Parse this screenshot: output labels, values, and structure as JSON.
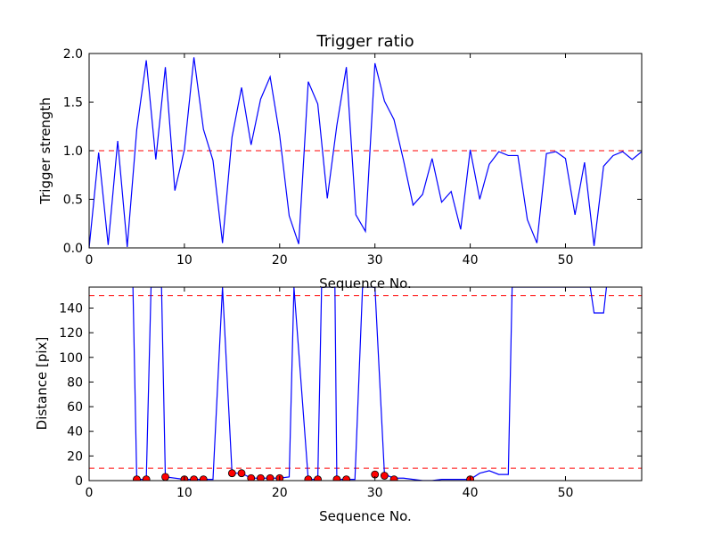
{
  "chart_data": [
    {
      "type": "line",
      "title": "Trigger ratio",
      "xlabel": "Sequence No.",
      "ylabel": "Trigger strength",
      "xlim": [
        0,
        58
      ],
      "ylim": [
        0,
        2.0
      ],
      "x_ticks": [
        "0",
        "10",
        "20",
        "30",
        "40",
        "50"
      ],
      "x_tick_values": [
        0,
        10,
        20,
        30,
        40,
        50
      ],
      "y_ticks": [
        "0.0",
        "0.5",
        "1.0",
        "1.5",
        "2.0"
      ],
      "y_tick_values": [
        0,
        0.5,
        1.0,
        1.5,
        2.0
      ],
      "grid": false,
      "series": [
        {
          "color": "#0000ff",
          "x": [
            0,
            1,
            2,
            3,
            4,
            5,
            6,
            7,
            8,
            9,
            10,
            11,
            12,
            13,
            14,
            15,
            16,
            17,
            18,
            19,
            20,
            21,
            22,
            23,
            24,
            25,
            26,
            27,
            28,
            29,
            30,
            31,
            32,
            33,
            34,
            35,
            36,
            37,
            38,
            39,
            40,
            41,
            42,
            43,
            44,
            45,
            46,
            47,
            48,
            49,
            50,
            51,
            52,
            53,
            54,
            55,
            56,
            57,
            58
          ],
          "values": [
            0.0,
            0.98,
            0.03,
            1.1,
            0.01,
            1.22,
            1.93,
            0.91,
            1.86,
            0.59,
            1.01,
            1.96,
            1.22,
            0.9,
            0.05,
            1.14,
            1.65,
            1.06,
            1.53,
            1.76,
            1.16,
            0.33,
            0.04,
            1.71,
            1.48,
            0.51,
            1.26,
            1.86,
            0.34,
            0.17,
            1.9,
            1.51,
            1.32,
            0.9,
            0.44,
            0.55,
            0.92,
            0.47,
            0.58,
            0.19,
            1.01,
            0.5,
            0.86,
            0.99,
            0.95,
            0.95,
            0.29,
            0.05,
            0.97,
            0.99,
            0.92,
            0.34,
            0.88,
            0.02,
            0.84,
            0.95,
            0.99,
            0.91,
            0.99
          ]
        }
      ],
      "thresholds": [
        {
          "y": 1.0,
          "color": "#ff0000",
          "style": "dashed"
        }
      ]
    },
    {
      "type": "line",
      "title": "",
      "xlabel": "Sequence No.",
      "ylabel": "Distance [pix]",
      "xlim": [
        0,
        58
      ],
      "ylim": [
        0,
        157
      ],
      "x_ticks": [
        "0",
        "10",
        "20",
        "30",
        "40",
        "50"
      ],
      "x_tick_values": [
        0,
        10,
        20,
        30,
        40,
        50
      ],
      "y_ticks": [
        "0",
        "20",
        "40",
        "60",
        "80",
        "100",
        "120",
        "140"
      ],
      "y_tick_values": [
        0,
        20,
        40,
        60,
        80,
        100,
        120,
        140
      ],
      "grid": false,
      "series": [
        {
          "color": "#0000ff",
          "x": [
            4.6,
            5,
            6,
            6.5,
            7.6,
            8,
            10,
            11,
            12,
            13,
            14,
            15,
            16,
            17,
            18,
            19,
            20,
            21,
            21.5,
            23,
            24,
            24.4,
            25.8,
            26,
            27,
            27.9,
            28.7,
            30,
            31,
            32,
            33,
            34,
            35,
            36,
            37,
            38,
            39,
            40,
            41,
            42,
            43,
            44,
            44.4,
            52.6,
            53,
            54,
            54.3
          ],
          "values": [
            157,
            1,
            1,
            157,
            157,
            3,
            1,
            1,
            1,
            1,
            157,
            6,
            6,
            2,
            2,
            2,
            2,
            3,
            157,
            1,
            1,
            157,
            157,
            1,
            1,
            1,
            157,
            157,
            5,
            2,
            2,
            1,
            0,
            0,
            1,
            1,
            1,
            1,
            6,
            8,
            5,
            5,
            157,
            157,
            136,
            136,
            157
          ]
        }
      ],
      "markers": {
        "color": "#ff0000",
        "edge_color": "#000000",
        "x": [
          5,
          6,
          8,
          10,
          11,
          12,
          15,
          16,
          17,
          18,
          19,
          20,
          23,
          24,
          26,
          27,
          30,
          31,
          32,
          40
        ],
        "y": [
          1,
          1,
          3,
          1,
          1,
          1,
          6,
          6,
          2,
          2,
          2,
          2,
          1,
          1,
          1,
          1,
          5,
          4,
          1,
          1
        ]
      },
      "thresholds": [
        {
          "y": 150,
          "color": "#ff0000",
          "style": "dashed"
        },
        {
          "y": 10,
          "color": "#ff0000",
          "style": "dashed"
        }
      ]
    }
  ]
}
